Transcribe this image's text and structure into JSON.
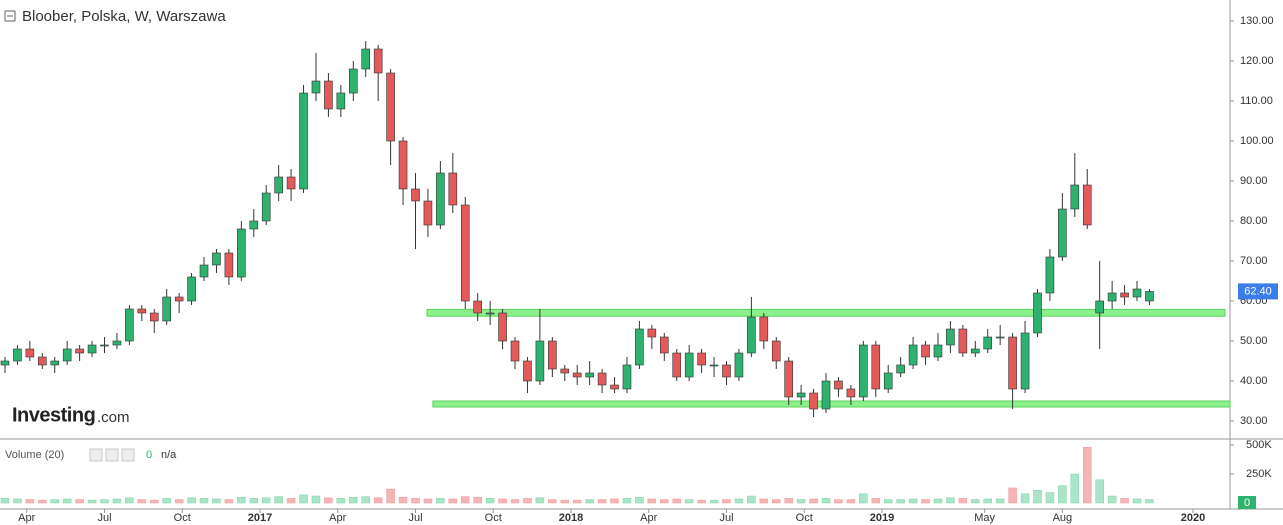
{
  "chart_data": {
    "type": "candlestick",
    "title": "Bloober, Polska, W, Warszawa",
    "logo": {
      "brand": "Investing",
      "suffix": ".com"
    },
    "volume_legend": {
      "label": "Volume (20)",
      "value": "0",
      "extra": "n/a"
    },
    "xlim": [
      2016.164,
      2020.119
    ],
    "xticks": [
      {
        "value": 2016.25,
        "label": "Apr"
      },
      {
        "value": 2016.5,
        "label": "Jul"
      },
      {
        "value": 2016.75,
        "label": "Oct"
      },
      2017,
      {
        "value": 2017.25,
        "label": "Apr"
      },
      {
        "value": 2017.5,
        "label": "Jul"
      },
      {
        "value": 2017.75,
        "label": "Oct"
      },
      2018,
      {
        "value": 2018.25,
        "label": "Apr"
      },
      {
        "value": 2018.5,
        "label": "Jul"
      },
      {
        "value": 2018.75,
        "label": "Oct"
      },
      2019,
      {
        "value": 2019.33,
        "label": "May"
      },
      {
        "value": 2019.58,
        "label": "Aug"
      },
      2020
    ],
    "ylim": [
      25.75,
      135.25
    ],
    "yticks": [
      {
        "value": 30,
        "label": "30.00"
      },
      {
        "value": 40,
        "label": "40.00"
      },
      {
        "value": 50,
        "label": "50.00"
      },
      {
        "value": 60,
        "label": "60.00"
      },
      {
        "value": 70,
        "label": "70.00"
      },
      {
        "value": 80,
        "label": "80.00"
      },
      {
        "value": 90,
        "label": "90.00"
      },
      {
        "value": 100,
        "label": "100.00"
      },
      {
        "value": 110,
        "label": "110.00"
      },
      {
        "value": 120,
        "label": "120.00"
      },
      {
        "value": 130,
        "label": "130.00"
      }
    ],
    "volume_ylim": [
      -43000,
      543000
    ],
    "volume_yticks": [
      {
        "value": 250000,
        "label": "250K"
      },
      {
        "value": 500000,
        "label": "500K"
      }
    ],
    "last_price": {
      "value": 62.4,
      "label": "62.40"
    },
    "volume_last": 0,
    "up_color": "#2db36f",
    "down_color": "#e25a5a",
    "volume_up_color": "#a9e5c6",
    "volume_down_color": "#f5b5b5",
    "zone_color": "#8cf08c",
    "zones": [
      {
        "x": [
          2017.537,
          2020.103
        ],
        "y": [
          56.2,
          57.9
        ]
      },
      {
        "x": [
          2017.556,
          2020.119
        ],
        "y": [
          33.5,
          35
        ]
      }
    ],
    "x": [
      2016.18,
      2016.22,
      2016.26,
      2016.3,
      2016.34,
      2016.38,
      2016.42,
      2016.46,
      2016.5,
      2016.54,
      2016.58,
      2016.62,
      2016.66,
      2016.7,
      2016.74,
      2016.78,
      2016.82,
      2016.86,
      2016.9,
      2016.94,
      2016.98,
      2017.02,
      2017.06,
      2017.1,
      2017.14,
      2017.18,
      2017.22,
      2017.26,
      2017.3,
      2017.34,
      2017.38,
      2017.42,
      2017.46,
      2017.5,
      2017.54,
      2017.58,
      2017.62,
      2017.66,
      2017.7,
      2017.74,
      2017.78,
      2017.82,
      2017.86,
      2017.9,
      2017.94,
      2017.98,
      2018.02,
      2018.06,
      2018.1,
      2018.14,
      2018.18,
      2018.22,
      2018.26,
      2018.3,
      2018.34,
      2018.38,
      2018.42,
      2018.46,
      2018.5,
      2018.54,
      2018.58,
      2018.62,
      2018.66,
      2018.7,
      2018.74,
      2018.78,
      2018.82,
      2018.86,
      2018.9,
      2018.94,
      2018.98,
      2019.02,
      2019.06,
      2019.1,
      2019.14,
      2019.18,
      2019.22,
      2019.26,
      2019.3,
      2019.34,
      2019.38,
      2019.42,
      2019.46,
      2019.5,
      2019.54,
      2019.58,
      2019.62,
      2019.66,
      2019.7,
      2019.74,
      2019.78,
      2019.82,
      2019.86
    ],
    "open": [
      44,
      45,
      48,
      46,
      44,
      45,
      48,
      47,
      49,
      49,
      50,
      58,
      57,
      55,
      61,
      60,
      66,
      69,
      72,
      66,
      78,
      80,
      87,
      91,
      88,
      112,
      115,
      108,
      112,
      118,
      123,
      117,
      100,
      88,
      85,
      79,
      92,
      84,
      60,
      57,
      57,
      50,
      45,
      40,
      50,
      43,
      42,
      41,
      42,
      39,
      38,
      44,
      53,
      51,
      47,
      41,
      47,
      44,
      44,
      41,
      47,
      56,
      50,
      45,
      36,
      37,
      33,
      40,
      38,
      36,
      49,
      38,
      42,
      44,
      49,
      46,
      49,
      53,
      47,
      48,
      51,
      51,
      38,
      52,
      62,
      71,
      83,
      89,
      57,
      60,
      62,
      61,
      60
    ],
    "high": [
      46,
      49,
      50,
      47,
      46,
      50,
      49,
      50,
      51,
      52,
      59,
      59,
      58,
      63,
      62,
      67,
      71,
      73,
      73,
      80,
      83,
      89,
      94,
      93,
      114,
      122,
      117,
      114,
      120,
      125,
      124,
      118,
      101,
      92,
      88,
      95,
      97,
      86,
      62,
      60,
      58,
      51,
      46,
      58,
      51,
      44,
      44,
      45,
      43,
      41,
      46,
      55,
      54,
      52,
      48,
      49,
      48,
      46,
      45,
      48,
      61,
      57,
      51,
      46,
      39,
      38,
      42,
      41,
      39,
      50,
      50,
      44,
      46,
      51,
      50,
      52,
      55,
      54,
      50,
      53,
      54,
      52,
      55,
      63,
      73,
      87,
      97,
      93,
      70,
      65,
      64,
      65,
      63
    ],
    "low": [
      42,
      44,
      45,
      43,
      42,
      44,
      45,
      46,
      47,
      48,
      49,
      55,
      52,
      54,
      57,
      59,
      65,
      67,
      64,
      65,
      76,
      79,
      85,
      85,
      87,
      110,
      106,
      106,
      110,
      116,
      110,
      94,
      84,
      73,
      76,
      78,
      82,
      58,
      55,
      54,
      48,
      43,
      37,
      39,
      41,
      40,
      39,
      39,
      37,
      37,
      37,
      43,
      48,
      45,
      40,
      40,
      42,
      41,
      39,
      40,
      46,
      48,
      43,
      34,
      34,
      31,
      32,
      36,
      34,
      35,
      36,
      37,
      41,
      43,
      44,
      45,
      47,
      46,
      46,
      47,
      49,
      33,
      37,
      51,
      60,
      70,
      81,
      78,
      48,
      58,
      59,
      60,
      59
    ],
    "close": [
      45,
      48,
      46,
      44,
      45,
      48,
      47,
      49,
      49,
      50,
      58,
      57,
      55,
      61,
      60,
      66,
      69,
      72,
      66,
      78,
      80,
      87,
      91,
      88,
      112,
      115,
      108,
      112,
      118,
      123,
      117,
      100,
      88,
      85,
      79,
      92,
      84,
      60,
      57,
      57,
      50,
      45,
      40,
      50,
      43,
      42,
      41,
      42,
      39,
      38,
      44,
      53,
      51,
      47,
      41,
      47,
      44,
      44,
      41,
      47,
      56,
      50,
      45,
      36,
      37,
      33,
      40,
      38,
      36,
      49,
      38,
      42,
      44,
      49,
      46,
      49,
      53,
      47,
      48,
      51,
      51,
      38,
      52,
      62,
      71,
      83,
      89,
      79,
      60,
      62,
      61,
      63,
      62.4
    ],
    "volume": [
      40000,
      35000,
      30000,
      25000,
      30000,
      35000,
      30000,
      25000,
      30000,
      35000,
      45000,
      30000,
      25000,
      40000,
      30000,
      45000,
      40000,
      35000,
      30000,
      50000,
      40000,
      45000,
      55000,
      40000,
      70000,
      60000,
      45000,
      40000,
      50000,
      55000,
      45000,
      120000,
      50000,
      40000,
      35000,
      40000,
      35000,
      55000,
      50000,
      40000,
      35000,
      30000,
      40000,
      45000,
      30000,
      25000,
      25000,
      30000,
      30000,
      35000,
      40000,
      50000,
      35000,
      30000,
      35000,
      30000,
      25000,
      25000,
      30000,
      35000,
      60000,
      35000,
      30000,
      40000,
      30000,
      35000,
      40000,
      30000,
      30000,
      80000,
      40000,
      30000,
      30000,
      35000,
      30000,
      35000,
      45000,
      40000,
      30000,
      35000,
      35000,
      130000,
      80000,
      110000,
      90000,
      150000,
      250000,
      480000,
      200000,
      60000,
      40000,
      35000,
      30000
    ]
  }
}
